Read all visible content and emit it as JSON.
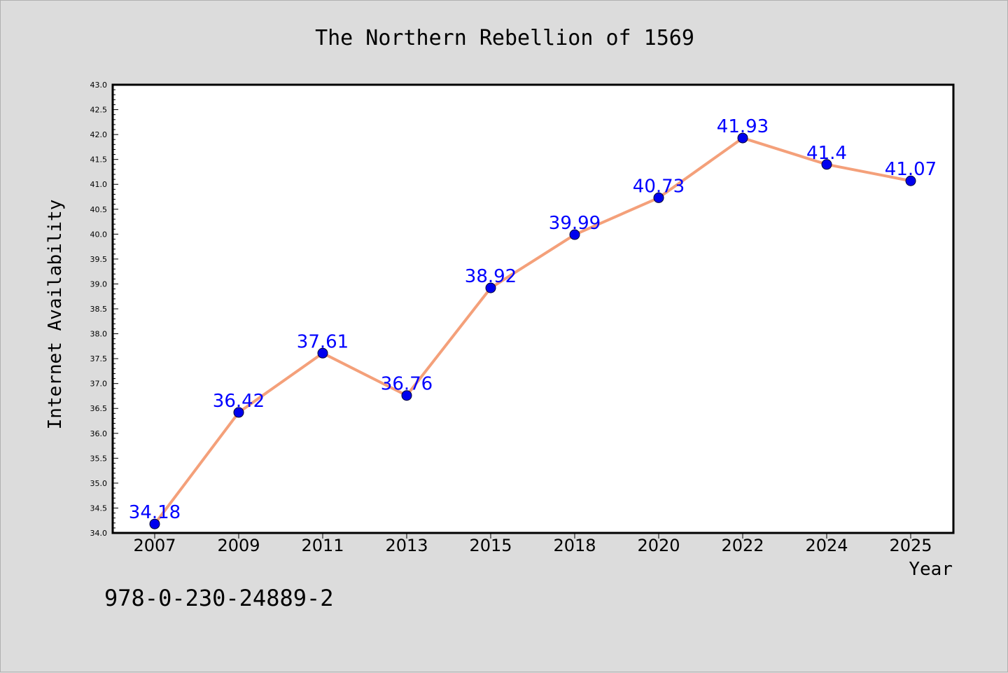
{
  "chart_data": {
    "type": "line",
    "title": "The Northern Rebellion of 1569",
    "xlabel": "Year",
    "ylabel": "Internet Availability",
    "categories": [
      "2007",
      "2009",
      "2011",
      "2013",
      "2015",
      "2018",
      "2020",
      "2022",
      "2024",
      "2025"
    ],
    "series": [
      {
        "values": [
          34.18,
          36.42,
          37.61,
          36.76,
          38.92,
          39.99,
          40.73,
          41.93,
          41.4,
          41.07
        ],
        "data_labels": [
          "34.18",
          "36.42",
          "37.61",
          "36.76",
          "38.92",
          "39.99",
          "40.73",
          "41.93",
          "41.4",
          "41.07"
        ],
        "line_color": "#f4a07a",
        "marker_color": "#0000ee",
        "label_color": "#0000ff"
      }
    ],
    "ylim": [
      34.0,
      43.0
    ],
    "yticks": [
      "34.0",
      "34.5",
      "35.0",
      "35.5",
      "36.0",
      "36.5",
      "37.0",
      "37.5",
      "38.0",
      "38.5",
      "39.0",
      "39.5",
      "40.0",
      "40.5",
      "41.0",
      "41.5",
      "42.0",
      "42.5",
      "43.0"
    ],
    "grid": false,
    "legend": "none"
  },
  "footer": {
    "isbn": "978-0-230-24889-2"
  },
  "colors": {
    "background": "#dcdcdc",
    "plot_background": "#ffffff"
  }
}
